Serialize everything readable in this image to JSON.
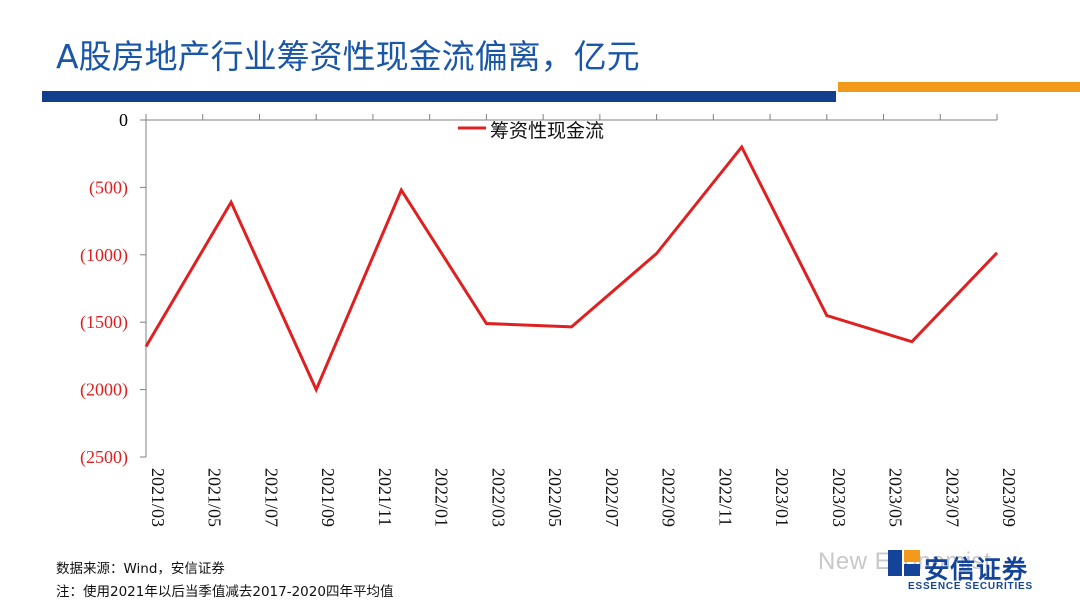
{
  "slide": {
    "title": "A股房地产行业筹资性现金流偏离，亿元",
    "source_note": "数据来源：Wind，安信证券",
    "method_note": "注：使用2021年以后当季值减去2017-2020四年平均值",
    "watermark": "New Economist",
    "logo_cn": "安信证券",
    "logo_en": "ESSENCE SECURITIES",
    "brand_colors": {
      "title": "#1a56a8",
      "bar_blue": "#123f8c",
      "bar_orange": "#f39a1c"
    }
  },
  "chart_data": {
    "type": "line",
    "title": "",
    "xlabel": "",
    "ylabel": "",
    "categories": [
      "2021/03",
      "2021/05",
      "2021/07",
      "2021/09",
      "2021/11",
      "2022/01",
      "2022/03",
      "2022/05",
      "2022/07",
      "2022/09",
      "2022/11",
      "2023/01",
      "2023/03",
      "2023/05",
      "2023/07",
      "2023/09"
    ],
    "points": [
      {
        "x": "2021/03",
        "y": -1680
      },
      {
        "x": "2021/06",
        "y": -610
      },
      {
        "x": "2021/09",
        "y": -2000
      },
      {
        "x": "2021/12",
        "y": -520
      },
      {
        "x": "2022/03",
        "y": -1510
      },
      {
        "x": "2022/06",
        "y": -1535
      },
      {
        "x": "2022/09",
        "y": -990
      },
      {
        "x": "2022/12",
        "y": -200
      },
      {
        "x": "2023/03",
        "y": -1450
      },
      {
        "x": "2023/06",
        "y": -1645
      },
      {
        "x": "2023/09",
        "y": -985
      }
    ],
    "series": [
      {
        "name": "筹资性现金流",
        "color": "#e02020"
      }
    ],
    "ylim": [
      -2500,
      0
    ],
    "yticks": [
      0,
      -500,
      -1000,
      -1500,
      -2000,
      -2500
    ],
    "ytick_labels": [
      "0",
      "(500)",
      "(1000)",
      "(1500)",
      "(2000)",
      "(2500)"
    ],
    "ytick_colors": {
      "zero": "#000000",
      "negative": "#e02020"
    },
    "legend_position": "top-center",
    "grid": false
  }
}
